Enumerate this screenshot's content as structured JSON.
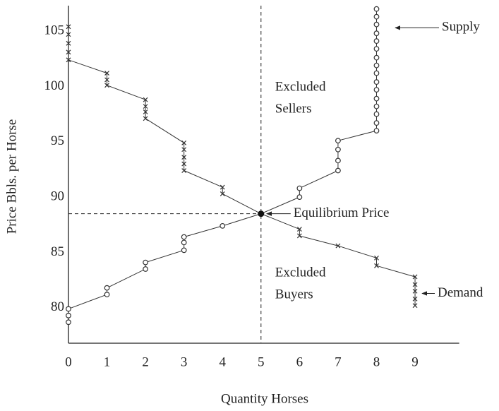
{
  "chart_data": {
    "type": "line",
    "xlabel": "Quantity Horses",
    "ylabel": "Price Bbls. per Horse",
    "xlim": [
      0,
      10
    ],
    "ylim": [
      76.8,
      107.3
    ],
    "xticks": [
      0,
      1,
      2,
      3,
      4,
      5,
      6,
      7,
      8,
      9
    ],
    "yticks": [
      80,
      85,
      90,
      95,
      100,
      105
    ],
    "grid": false,
    "series": [
      {
        "name": "Demand",
        "color": "#333333",
        "marker": "x",
        "x": [
          0,
          0,
          0,
          0,
          0,
          1,
          1,
          1,
          2,
          2,
          2,
          2,
          3,
          3,
          3,
          3,
          3,
          4,
          4,
          5,
          6,
          6,
          7,
          8,
          8,
          9,
          9,
          9,
          9,
          9
        ],
        "values": [
          105.4,
          104.7,
          103.9,
          103.1,
          102.4,
          101.2,
          100.6,
          100.1,
          98.8,
          98.2,
          97.7,
          97.1,
          94.9,
          94.3,
          93.6,
          93.0,
          92.4,
          90.9,
          90.3,
          88.5,
          87.1,
          86.5,
          85.6,
          84.5,
          83.8,
          82.8,
          82.1,
          81.5,
          80.8,
          80.2
        ]
      },
      {
        "name": "Supply",
        "color": "#333333",
        "marker": "o",
        "x": [
          0,
          0,
          0,
          1,
          1,
          2,
          2,
          3,
          3,
          3,
          4,
          5,
          6,
          6,
          7,
          7,
          7,
          7,
          8,
          8,
          8,
          8,
          8,
          8,
          8,
          8,
          8,
          8,
          8,
          8,
          8,
          8,
          8,
          8
        ],
        "values": [
          78.7,
          79.3,
          79.9,
          81.2,
          81.8,
          83.5,
          84.1,
          85.2,
          85.9,
          86.4,
          87.4,
          88.5,
          90.0,
          90.8,
          92.4,
          93.3,
          94.3,
          95.1,
          96.0,
          96.7,
          97.5,
          98.2,
          98.9,
          99.7,
          100.4,
          101.2,
          101.9,
          102.6,
          103.4,
          104.1,
          104.8,
          105.6,
          106.3,
          107.0
        ]
      }
    ],
    "equilibrium": {
      "x": 5,
      "y": 88.5,
      "label": "Equilibrium Price"
    },
    "annotations": [
      {
        "lines": [
          "Excluded",
          "Sellers"
        ]
      },
      {
        "lines": [
          "Excluded",
          "Buyers"
        ]
      }
    ]
  }
}
